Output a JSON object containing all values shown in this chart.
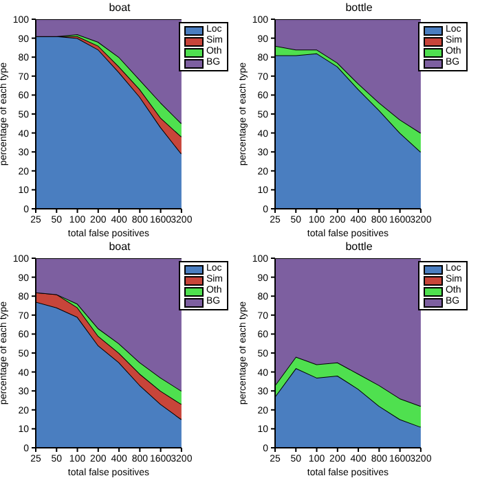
{
  "chart_data": [
    {
      "type": "area",
      "stacked": true,
      "title": "boat",
      "xlabel": "total false positives",
      "ylabel": "percentage of each type",
      "categories": [
        "25",
        "50",
        "100",
        "200",
        "400",
        "800",
        "1600",
        "3200"
      ],
      "ylim": [
        0,
        100
      ],
      "yticks": [
        0,
        10,
        20,
        30,
        40,
        50,
        60,
        70,
        80,
        90,
        100
      ],
      "legend": "top right",
      "series": [
        {
          "name": "Loc",
          "color": "#4a7ec0",
          "values": [
            91,
            91,
            90,
            84,
            72,
            59,
            43,
            29
          ]
        },
        {
          "name": "Sim",
          "color": "#c8453a",
          "values": [
            0,
            0,
            1,
            2,
            3,
            4,
            5,
            9
          ]
        },
        {
          "name": "Oth",
          "color": "#4fe04f",
          "values": [
            0,
            0,
            1,
            2,
            5,
            5,
            8,
            7
          ]
        },
        {
          "name": "BG",
          "color": "#7d5fa0",
          "values": [
            9,
            9,
            8,
            12,
            20,
            32,
            44,
            55
          ]
        }
      ]
    },
    {
      "type": "area",
      "stacked": true,
      "title": "bottle",
      "xlabel": "total false positives",
      "ylabel": "percentage of each type",
      "categories": [
        "25",
        "50",
        "100",
        "200",
        "400",
        "800",
        "1600",
        "3200"
      ],
      "ylim": [
        0,
        100
      ],
      "yticks": [
        0,
        10,
        20,
        30,
        40,
        50,
        60,
        70,
        80,
        90,
        100
      ],
      "legend": "top right",
      "series": [
        {
          "name": "Loc",
          "color": "#4a7ec0",
          "values": [
            81,
            81,
            82,
            75,
            63,
            52,
            40,
            30
          ]
        },
        {
          "name": "Sim",
          "color": "#c8453a",
          "values": [
            null,
            null,
            null,
            null,
            null,
            null,
            null,
            null
          ]
        },
        {
          "name": "Oth",
          "color": "#4fe04f",
          "values": [
            5,
            3,
            2,
            2,
            3,
            4,
            7,
            10
          ]
        },
        {
          "name": "BG",
          "color": "#7d5fa0",
          "values": [
            14,
            16,
            16,
            23,
            34,
            44,
            53,
            60
          ]
        }
      ]
    },
    {
      "type": "area",
      "stacked": true,
      "title": "boat",
      "xlabel": "total false positives",
      "ylabel": "percentage of each type",
      "categories": [
        "25",
        "50",
        "100",
        "200",
        "400",
        "800",
        "1600",
        "3200"
      ],
      "ylim": [
        0,
        100
      ],
      "yticks": [
        0,
        10,
        20,
        30,
        40,
        50,
        60,
        70,
        80,
        90,
        100
      ],
      "legend": "top right",
      "series": [
        {
          "name": "Loc",
          "color": "#4a7ec0",
          "values": [
            77,
            74,
            69,
            54,
            45,
            33,
            23,
            15
          ]
        },
        {
          "name": "Sim",
          "color": "#c8453a",
          "values": [
            5,
            7,
            5,
            5,
            5,
            6,
            7,
            8
          ]
        },
        {
          "name": "Oth",
          "color": "#4fe04f",
          "values": [
            0,
            0,
            2,
            4,
            5,
            6,
            7,
            7
          ]
        },
        {
          "name": "BG",
          "color": "#7d5fa0",
          "values": [
            18,
            19,
            24,
            37,
            45,
            55,
            63,
            70
          ]
        }
      ]
    },
    {
      "type": "area",
      "stacked": true,
      "title": "bottle",
      "xlabel": "total false positives",
      "ylabel": "percentage of each type",
      "categories": [
        "25",
        "50",
        "100",
        "200",
        "400",
        "800",
        "1600",
        "3200"
      ],
      "ylim": [
        0,
        100
      ],
      "yticks": [
        0,
        10,
        20,
        30,
        40,
        50,
        60,
        70,
        80,
        90,
        100
      ],
      "legend": "top right",
      "series": [
        {
          "name": "Loc",
          "color": "#4a7ec0",
          "values": [
            27,
            42,
            37,
            38,
            31,
            22,
            15,
            11
          ]
        },
        {
          "name": "Sim",
          "color": "#c8453a",
          "values": [
            null,
            null,
            null,
            null,
            null,
            null,
            null,
            null
          ]
        },
        {
          "name": "Oth",
          "color": "#4fe04f",
          "values": [
            6,
            6,
            7,
            7,
            8,
            11,
            11,
            11
          ]
        },
        {
          "name": "BG",
          "color": "#7d5fa0",
          "values": [
            67,
            52,
            56,
            55,
            61,
            67,
            74,
            78
          ]
        }
      ]
    }
  ]
}
